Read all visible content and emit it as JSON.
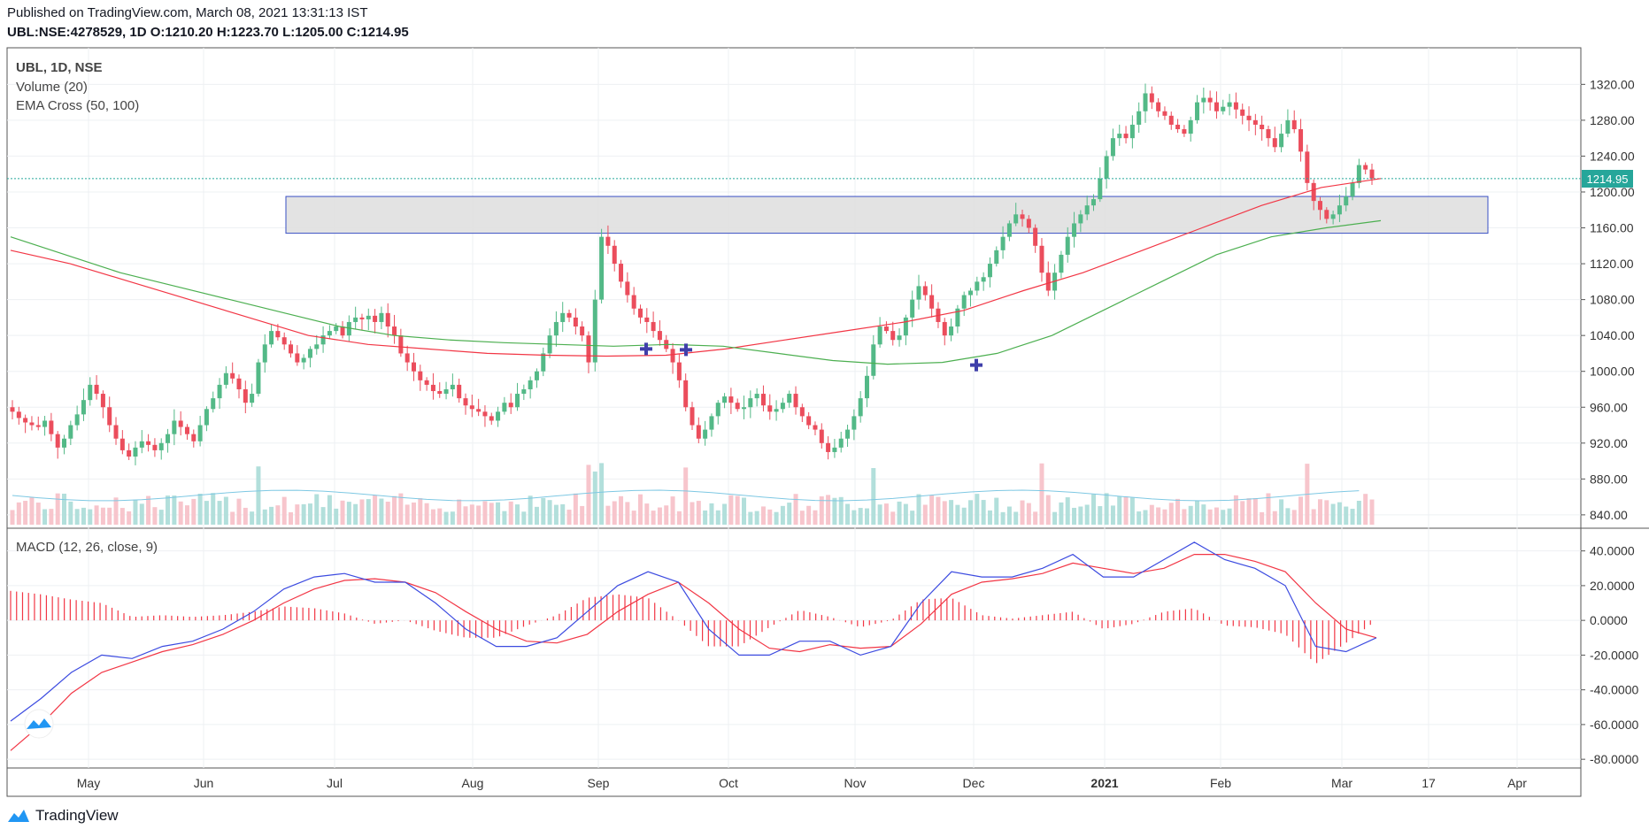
{
  "header": {
    "published": "Published on TradingView.com, March 08, 2021 13:31:13 IST",
    "symbol_line": "UBL:NSE:4278529, 1D",
    "o_label": "O:",
    "o_value": "1210.20",
    "h_label": "H:",
    "h_value": "1223.70",
    "l_label": "L:",
    "l_value": "1205.00",
    "c_label": "C:",
    "c_value": "1214.95"
  },
  "legend": {
    "symbol": "UBL, 1D, NSE",
    "volume": "Volume (20)",
    "ema": "EMA Cross (50, 100)",
    "macd": "MACD (12, 26, close, 9)"
  },
  "last_price_tag": "1214.95",
  "footer": {
    "brand": "TradingView"
  },
  "colors": {
    "up": "#26a69a",
    "up_candle": "#53b987",
    "down": "#eb4d5c",
    "ema_fast": "#f23645",
    "ema_slow": "#4caf50",
    "macd": "#3c4be0",
    "signal": "#f23645",
    "hist": "#f23645",
    "zone_fill": "#e0e0e0",
    "zone_border": "#2962ff",
    "cross": "#3f3faa"
  },
  "chart_data": {
    "type": "candlestick",
    "x_ticks": [
      "May",
      "Jun",
      "Jul",
      "Aug",
      "Sep",
      "Oct",
      "Nov",
      "Dec",
      "2021",
      "Feb",
      "Mar",
      "17",
      "Apr"
    ],
    "price_ticks": [
      "1320.00",
      "1280.00",
      "1240.00",
      "1200.00",
      "1160.00",
      "1120.00",
      "1080.00",
      "1040.00",
      "1000.00",
      "960.00",
      "920.00",
      "880.00",
      "840.00"
    ],
    "macd_ticks": [
      "40.0000",
      "20.0000",
      "0.0000",
      "-20.0000",
      "-40.0000",
      "-60.0000",
      "-80.0000"
    ],
    "price_range": [
      832,
      1345
    ],
    "macd_range": [
      -84,
      49
    ],
    "zone": {
      "from_date": "Jun 21",
      "to_date": "Mar 24",
      "low": 1154,
      "high": 1195
    },
    "close_series": [
      955,
      948,
      943,
      940,
      938,
      945,
      930,
      915,
      925,
      940,
      952,
      968,
      985,
      975,
      960,
      940,
      925,
      912,
      905,
      915,
      922,
      918,
      912,
      920,
      930,
      945,
      938,
      930,
      922,
      940,
      958,
      970,
      985,
      998,
      992,
      980,
      965,
      975,
      1010,
      1030,
      1045,
      1038,
      1030,
      1020,
      1010,
      1015,
      1025,
      1030,
      1040,
      1045,
      1050,
      1040,
      1055,
      1060,
      1058,
      1062,
      1055,
      1065,
      1050,
      1040,
      1020,
      1010,
      1000,
      990,
      985,
      978,
      975,
      980,
      985,
      970,
      962,
      958,
      955,
      950,
      945,
      955,
      965,
      960,
      975,
      980,
      990,
      1000,
      1020,
      1040,
      1055,
      1065,
      1060,
      1050,
      1040,
      1010,
      1080,
      1150,
      1140,
      1120,
      1100,
      1085,
      1070,
      1060,
      1055,
      1045,
      1035,
      1025,
      1010,
      990,
      960,
      940,
      925,
      935,
      950,
      965,
      972,
      965,
      958,
      960,
      970,
      975,
      962,
      955,
      958,
      965,
      975,
      960,
      950,
      940,
      935,
      920,
      910,
      915,
      925,
      935,
      950,
      970,
      995,
      1030,
      1050,
      1045,
      1035,
      1040,
      1060,
      1080,
      1095,
      1085,
      1070,
      1055,
      1040,
      1050,
      1070,
      1085,
      1090,
      1100,
      1105,
      1120,
      1135,
      1150,
      1165,
      1175,
      1170,
      1160,
      1140,
      1110,
      1090,
      1110,
      1130,
      1150,
      1165,
      1175,
      1185,
      1192,
      1215,
      1240,
      1260,
      1265,
      1260,
      1275,
      1290,
      1310,
      1300,
      1290,
      1285,
      1275,
      1270,
      1265,
      1280,
      1300,
      1305,
      1300,
      1290,
      1295,
      1300,
      1292,
      1285,
      1280,
      1275,
      1270,
      1260,
      1250,
      1265,
      1280,
      1270,
      1245,
      1210,
      1190,
      1180,
      1170,
      1175,
      1185,
      1195,
      1210,
      1230,
      1225,
      1214.95
    ],
    "series": [
      {
        "name": "EMA 50",
        "values": [
          1135,
          1120,
          1100,
          1080,
          1060,
          1040,
          1030,
          1025,
          1020,
          1018,
          1017,
          1018,
          1025,
          1035,
          1045,
          1055,
          1068,
          1090,
          1110,
          1135,
          1160,
          1185,
          1205,
          1215
        ]
      },
      {
        "name": "EMA 100",
        "values": [
          1150,
          1130,
          1110,
          1095,
          1080,
          1065,
          1050,
          1040,
          1035,
          1032,
          1030,
          1028,
          1030,
          1028,
          1020,
          1012,
          1008,
          1010,
          1020,
          1040,
          1070,
          1100,
          1130,
          1150,
          1160,
          1168
        ]
      },
      {
        "name": "MACD",
        "values": [
          -58,
          -45,
          -30,
          -20,
          -22,
          -15,
          -12,
          -5,
          5,
          18,
          25,
          27,
          22,
          22,
          10,
          -5,
          -15,
          -15,
          -10,
          5,
          20,
          28,
          22,
          -5,
          -20,
          -20,
          -12,
          -12,
          -20,
          -15,
          10,
          28,
          25,
          25,
          30,
          38,
          25,
          25,
          35,
          45,
          35,
          30,
          20,
          -15,
          -18,
          -10
        ]
      },
      {
        "name": "Signal",
        "values": [
          -75,
          -60,
          -42,
          -30,
          -24,
          -18,
          -14,
          -8,
          0,
          10,
          18,
          23,
          24,
          22,
          16,
          5,
          -5,
          -12,
          -13,
          -8,
          5,
          15,
          22,
          10,
          -5,
          -16,
          -18,
          -14,
          -16,
          -15,
          -2,
          15,
          22,
          24,
          27,
          33,
          30,
          27,
          30,
          38,
          38,
          34,
          28,
          10,
          -5,
          -10
        ]
      }
    ]
  }
}
